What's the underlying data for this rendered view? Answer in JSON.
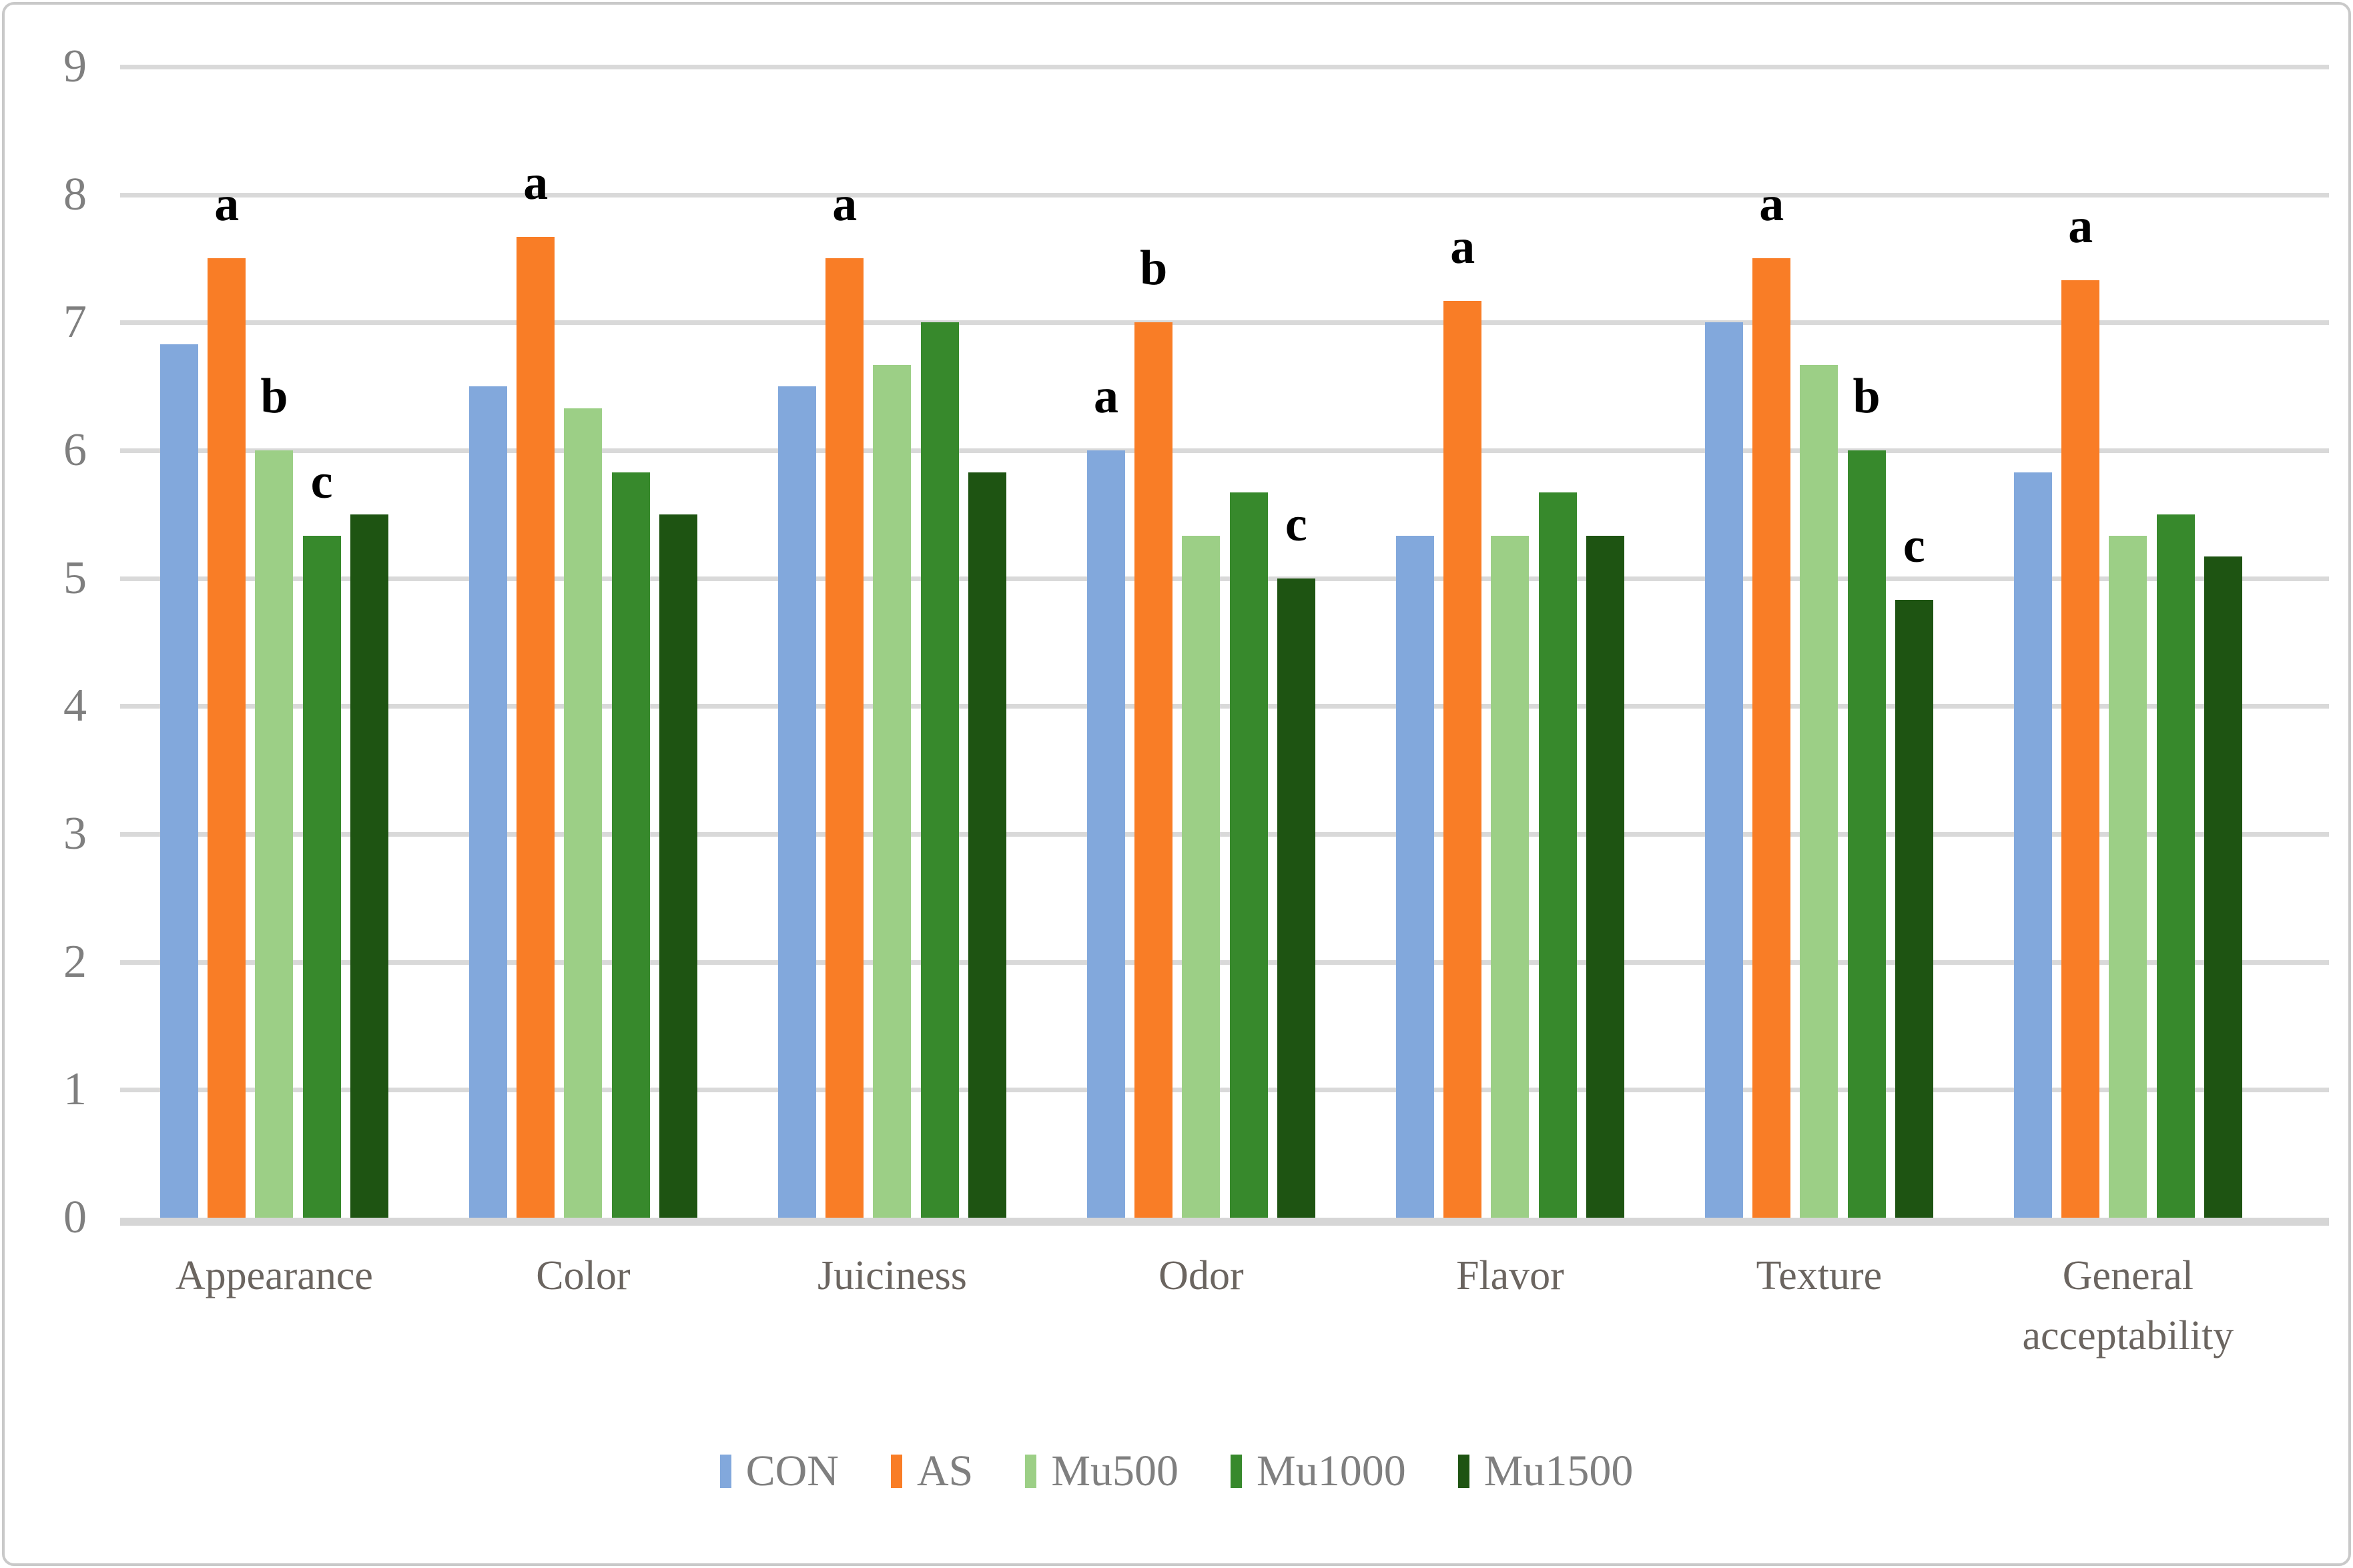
{
  "chart_data": {
    "type": "bar",
    "title": "",
    "xlabel": "",
    "ylabel": "",
    "ylim": [
      0,
      9
    ],
    "yticks": [
      0,
      1,
      2,
      3,
      4,
      5,
      6,
      7,
      8,
      9
    ],
    "grid": true,
    "legend_position": "bottom",
    "categories": [
      "Appearance",
      "Color",
      "Juiciness",
      "Odor",
      "Flavor",
      "Texture",
      "General acceptability"
    ],
    "series": [
      {
        "name": "CON",
        "color": "#82a8dc",
        "values": [
          6.83,
          6.5,
          6.5,
          6.0,
          5.33,
          7.0,
          5.83
        ]
      },
      {
        "name": "AS",
        "color": "#f97d26",
        "values": [
          7.5,
          7.67,
          7.5,
          7.0,
          7.17,
          7.5,
          7.33
        ]
      },
      {
        "name": "Mu500",
        "color": "#9ccf86",
        "values": [
          6.0,
          6.33,
          6.67,
          5.33,
          5.33,
          6.67,
          5.33
        ]
      },
      {
        "name": "Mu1000",
        "color": "#37892c",
        "values": [
          5.33,
          5.83,
          7.0,
          5.67,
          5.67,
          6.0,
          5.5
        ]
      },
      {
        "name": "Mu1500",
        "color": "#1e5412",
        "values": [
          5.5,
          5.5,
          5.83,
          5.0,
          5.33,
          4.83,
          5.17
        ]
      }
    ],
    "annotations": [
      {
        "category": "Appearance",
        "series": "AS",
        "letter": "a"
      },
      {
        "category": "Appearance",
        "series": "Mu500",
        "letter": "b"
      },
      {
        "category": "Appearance",
        "series": "Mu1000",
        "letter": "c"
      },
      {
        "category": "Color",
        "series": "AS",
        "letter": "a"
      },
      {
        "category": "Juiciness",
        "series": "AS",
        "letter": "a"
      },
      {
        "category": "Odor",
        "series": "CON",
        "letter": "a"
      },
      {
        "category": "Odor",
        "series": "AS",
        "letter": "b"
      },
      {
        "category": "Odor",
        "series": "Mu1500",
        "letter": "c"
      },
      {
        "category": "Flavor",
        "series": "AS",
        "letter": "a"
      },
      {
        "category": "Texture",
        "series": "AS",
        "letter": "a"
      },
      {
        "category": "Texture",
        "series": "Mu1000",
        "letter": "b"
      },
      {
        "category": "Texture",
        "series": "Mu1500",
        "letter": "c"
      },
      {
        "category": "General acceptability",
        "series": "AS",
        "letter": "a"
      }
    ]
  },
  "legend": {
    "items": [
      {
        "label": "CON",
        "color": "#82a8dc"
      },
      {
        "label": "AS",
        "color": "#f97d26"
      },
      {
        "label": "Mu500",
        "color": "#9ccf86"
      },
      {
        "label": "Mu1000",
        "color": "#37892c"
      },
      {
        "label": "Mu1500",
        "color": "#1e5412"
      }
    ]
  },
  "colors": {
    "gridline": "#d9d9d9",
    "axis_line": "#d6d6d6",
    "tick_label": "#7f7f7f",
    "category_label": "#6b6560",
    "annotation": "#000000",
    "border": "#c9c9c9",
    "background": "#ffffff"
  }
}
